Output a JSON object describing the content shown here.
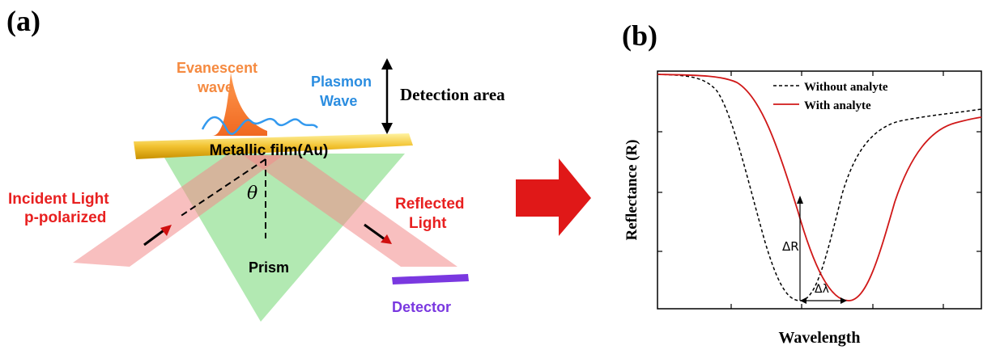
{
  "panel_a": {
    "label": "(a)",
    "evanescent": [
      "Evanescent",
      "wave"
    ],
    "plasmon": [
      "Plasmon",
      "Wave"
    ],
    "detection": "Detection area",
    "film": "Metallic film(Au)",
    "angle": "θ",
    "incident": [
      "Incident Light",
      "p-polarized"
    ],
    "reflected": [
      "Reflected",
      "Light"
    ],
    "prism": "Prism",
    "detector": "Detector"
  },
  "panel_b": {
    "label": "(b)",
    "legend": [
      "Without analyte",
      "With analyte"
    ],
    "delta_r": "ΔR",
    "delta_lambda": "Δλ",
    "y_label": "Reflectance (R)",
    "x_label": "Wavelength"
  }
}
